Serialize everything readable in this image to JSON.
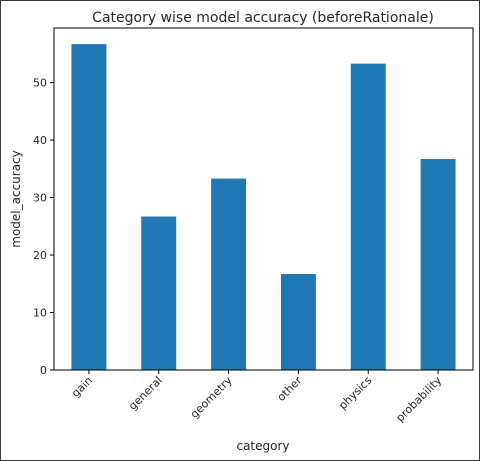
{
  "chart_data": {
    "type": "bar",
    "title": "Category wise model accuracy (beforeRationale)",
    "xlabel": "category",
    "ylabel": "model_accuracy",
    "categories": [
      "gain",
      "general",
      "geometry",
      "other",
      "physics",
      "probability"
    ],
    "values": [
      56.7,
      26.7,
      33.3,
      16.7,
      53.3,
      36.7
    ],
    "ylim": [
      0,
      59.5
    ],
    "yticks": [
      0,
      10,
      20,
      30,
      40,
      50
    ],
    "bar_color": "#1f77b4",
    "grid": false,
    "legend": "none"
  }
}
